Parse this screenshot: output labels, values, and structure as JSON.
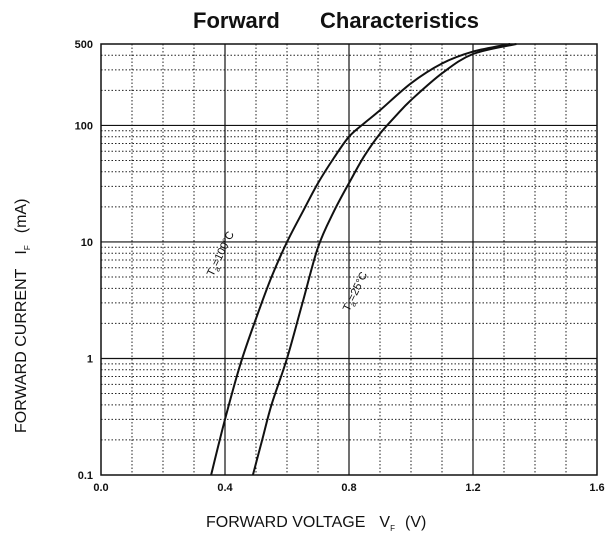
{
  "chart_data": {
    "type": "line",
    "title_left": "Forward",
    "title_right": "Characteristics",
    "xlabel": "FORWARD VOLTAGE",
    "xlabel_symbol": "V",
    "xlabel_sub": "F",
    "xlabel_unit": "(V)",
    "ylabel": "FORWARD CURRENT",
    "ylabel_symbol": "I",
    "ylabel_sub": "F",
    "ylabel_unit": "(mA)",
    "xlim": [
      0.0,
      1.6
    ],
    "ylim": [
      0.1,
      500
    ],
    "y_scale": "log",
    "x_ticks": [
      "0.0",
      "0.4",
      "0.8",
      "1.2",
      "1.6"
    ],
    "y_ticks": [
      "0.1",
      "1",
      "10",
      "100",
      "500"
    ],
    "grid": true,
    "series": [
      {
        "label_main": "T",
        "label_sub": "a",
        "label_rest": "=100°C",
        "points": [
          [
            0.355,
            0.1
          ],
          [
            0.4,
            0.3
          ],
          [
            0.45,
            0.9
          ],
          [
            0.5,
            2.2
          ],
          [
            0.55,
            5.0
          ],
          [
            0.6,
            10
          ],
          [
            0.65,
            18
          ],
          [
            0.7,
            32
          ],
          [
            0.75,
            52
          ],
          [
            0.8,
            80
          ],
          [
            0.85,
            105
          ],
          [
            0.9,
            135
          ],
          [
            1.0,
            230
          ],
          [
            1.1,
            340
          ],
          [
            1.2,
            430
          ],
          [
            1.32,
            500
          ]
        ]
      },
      {
        "label_main": "T",
        "label_sub": "a",
        "label_rest": "=25°C",
        "points": [
          [
            0.49,
            0.1
          ],
          [
            0.52,
            0.2
          ],
          [
            0.55,
            0.4
          ],
          [
            0.6,
            1.0
          ],
          [
            0.65,
            3.0
          ],
          [
            0.7,
            9.0
          ],
          [
            0.75,
            18
          ],
          [
            0.8,
            32
          ],
          [
            0.85,
            55
          ],
          [
            0.9,
            85
          ],
          [
            0.95,
            120
          ],
          [
            1.0,
            165
          ],
          [
            1.1,
            280
          ],
          [
            1.2,
            410
          ],
          [
            1.34,
            500
          ]
        ]
      }
    ]
  }
}
